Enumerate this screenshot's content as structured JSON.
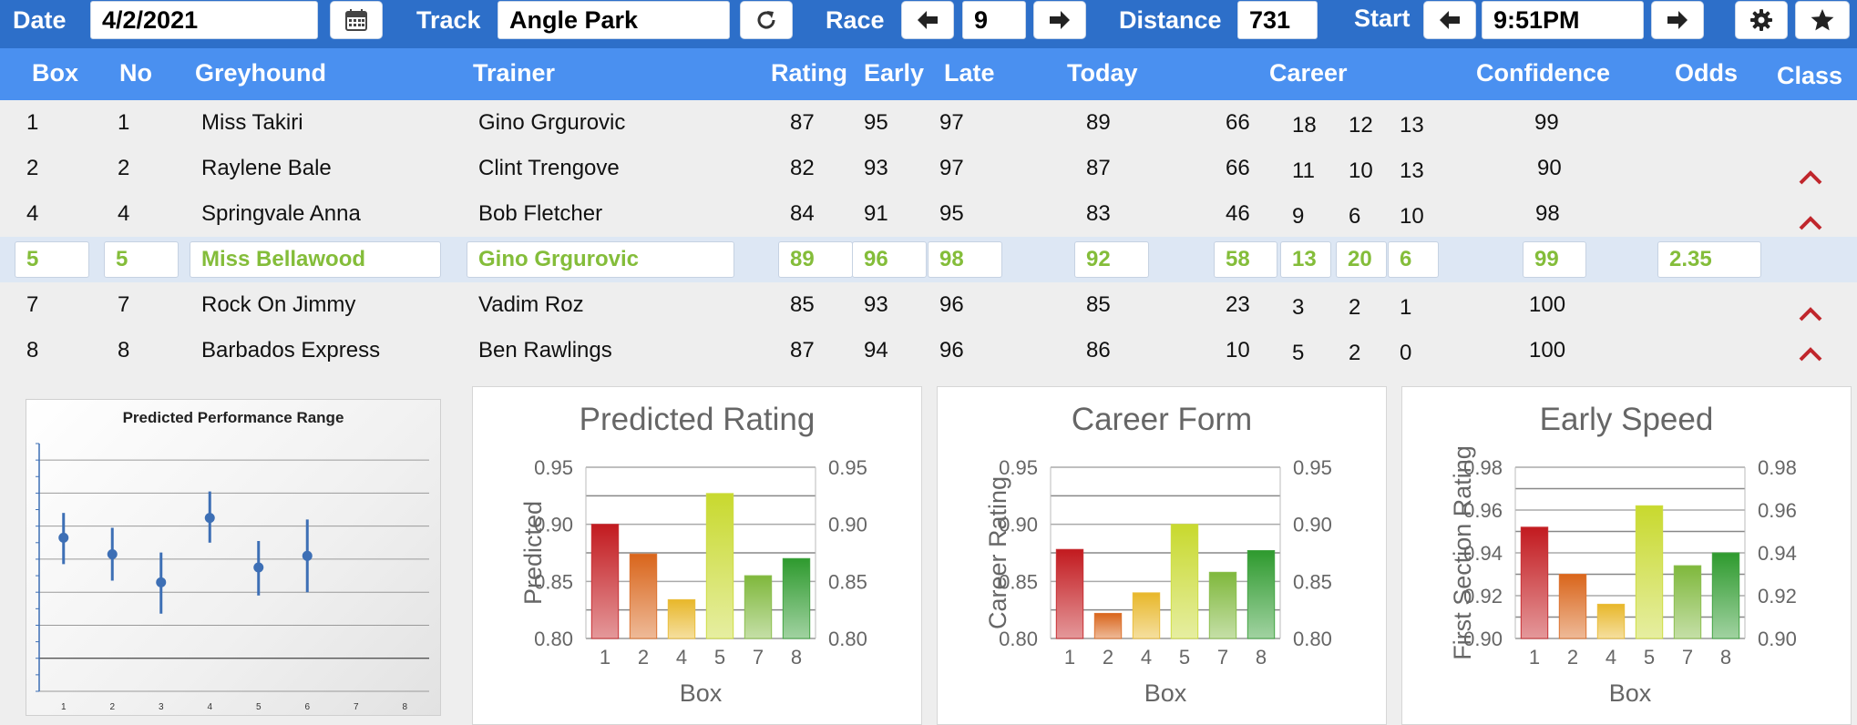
{
  "toolbar": {
    "date_label": "Date",
    "date_value": "4/2/2021",
    "calendar_icon": "calendar-icon",
    "track_label": "Track",
    "track_value": "Angle Park",
    "refresh_icon": "refresh-icon",
    "race_label": "Race",
    "race_value": "9",
    "distance_label": "Distance",
    "distance_value": "731",
    "start_label": "Start",
    "start_value": "9:51PM",
    "prev_icon": "arrow-left-icon",
    "next_icon": "arrow-right-icon",
    "settings_icon": "gear-icon",
    "favorite_icon": "star-icon"
  },
  "table": {
    "headers": {
      "box": "Box",
      "no": "No",
      "greyhound": "Greyhound",
      "trainer": "Trainer",
      "rating": "Rating",
      "early": "Early",
      "late": "Late",
      "today": "Today",
      "career": "Career",
      "confidence": "Confidence",
      "odds": "Odds",
      "class": "Class"
    },
    "rows": [
      {
        "box": "1",
        "no": "1",
        "greyhound": "Miss Takiri",
        "trainer": "Gino Grgurovic",
        "rating": "87",
        "early": "95",
        "late": "97",
        "today": "89",
        "career": "66",
        "c1": "18",
        "c2": "12",
        "c3": "13",
        "confidence": "99",
        "odds": "",
        "class_icon": ""
      },
      {
        "box": "2",
        "no": "2",
        "greyhound": "Raylene Bale",
        "trainer": "Clint Trengove",
        "rating": "82",
        "early": "93",
        "late": "97",
        "today": "87",
        "career": "66",
        "c1": "11",
        "c2": "10",
        "c3": "13",
        "confidence": "90",
        "odds": "",
        "class_icon": "chevron-up-icon"
      },
      {
        "box": "4",
        "no": "4",
        "greyhound": "Springvale Anna",
        "trainer": "Bob Fletcher",
        "rating": "84",
        "early": "91",
        "late": "95",
        "today": "83",
        "career": "46",
        "c1": "9",
        "c2": "6",
        "c3": "10",
        "confidence": "98",
        "odds": "",
        "class_icon": "chevron-up-icon"
      },
      {
        "box": "5",
        "no": "5",
        "greyhound": "Miss Bellawood",
        "trainer": "Gino Grgurovic",
        "rating": "89",
        "early": "96",
        "late": "98",
        "today": "92",
        "career": "58",
        "c1": "13",
        "c2": "20",
        "c3": "6",
        "confidence": "99",
        "odds": "2.35",
        "class_icon": ""
      },
      {
        "box": "7",
        "no": "7",
        "greyhound": "Rock On Jimmy",
        "trainer": "Vadim Roz",
        "rating": "85",
        "early": "93",
        "late": "96",
        "today": "85",
        "career": "23",
        "c1": "3",
        "c2": "2",
        "c3": "1",
        "confidence": "100",
        "odds": "",
        "class_icon": "chevron-up-icon"
      },
      {
        "box": "8",
        "no": "8",
        "greyhound": "Barbados Express",
        "trainer": "Ben Rawlings",
        "rating": "87",
        "early": "94",
        "late": "96",
        "today": "86",
        "career": "10",
        "c1": "5",
        "c2": "2",
        "c3": "0",
        "confidence": "100",
        "odds": "",
        "class_icon": "chevron-up-icon"
      }
    ]
  },
  "colors": {
    "toolbar_bg": "#2d6fc9",
    "header_bg": "#4a90f0",
    "selected_row_text": "#84bd3a",
    "class_chevron": "#c0262c",
    "bar_colors": [
      "#c21a1f",
      "#d9651b",
      "#e8b72a",
      "#c8d92e",
      "#7fb83c",
      "#2e9a2e"
    ]
  },
  "chart_data": [
    {
      "type": "scatter",
      "title": "Predicted Performance Range",
      "categories": [
        "1",
        "2",
        "3",
        "4",
        "5",
        "6",
        "7",
        "8"
      ],
      "x": [
        1,
        2,
        3,
        4,
        5,
        6
      ],
      "values": [
        0.893,
        0.883,
        0.866,
        0.905,
        0.875,
        0.882
      ],
      "error_low": [
        0.877,
        0.867,
        0.847,
        0.89,
        0.858,
        0.86
      ],
      "error_high": [
        0.908,
        0.899,
        0.884,
        0.921,
        0.891,
        0.904
      ],
      "ylim": [
        0.8,
        0.95
      ],
      "xlim": [
        0.5,
        8.5
      ],
      "grid": true
    },
    {
      "type": "bar",
      "title": "Predicted Rating",
      "categories": [
        "1",
        "2",
        "4",
        "5",
        "7",
        "8"
      ],
      "values": [
        0.9,
        0.874,
        0.834,
        0.927,
        0.855,
        0.87
      ],
      "xlabel": "Box",
      "ylabel": "Predicted",
      "ylim": [
        0.8,
        0.95
      ],
      "yticks": [
        "0.80",
        "0.85",
        "0.90",
        "0.95"
      ],
      "grid": true
    },
    {
      "type": "bar",
      "title": "Career Form",
      "categories": [
        "1",
        "2",
        "4",
        "5",
        "7",
        "8"
      ],
      "values": [
        0.878,
        0.822,
        0.84,
        0.9,
        0.858,
        0.877
      ],
      "xlabel": "Box",
      "ylabel": "Career Rating",
      "ylim": [
        0.8,
        0.95
      ],
      "yticks": [
        "0.80",
        "0.85",
        "0.90",
        "0.95"
      ],
      "grid": true
    },
    {
      "type": "bar",
      "title": "Early Speed",
      "categories": [
        "1",
        "2",
        "4",
        "5",
        "7",
        "8"
      ],
      "values": [
        0.952,
        0.93,
        0.916,
        0.962,
        0.934,
        0.94
      ],
      "xlabel": "Box",
      "ylabel": "First Section Rating",
      "ylim": [
        0.9,
        0.98
      ],
      "yticks": [
        "0.90",
        "0.92",
        "0.94",
        "0.96",
        "0.98"
      ],
      "grid": true
    }
  ]
}
